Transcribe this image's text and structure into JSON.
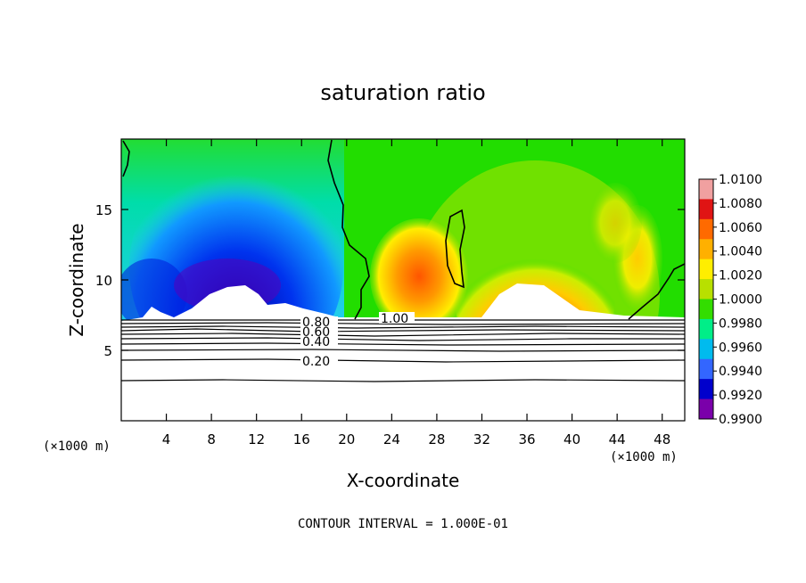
{
  "chart_data": {
    "type": "heatmap",
    "title": "saturation ratio",
    "xlabel": "X-coordinate",
    "ylabel": "Z-coordinate",
    "x_unit": "(×1000 m)",
    "x_unit_right": "(×1000 m)",
    "xlim": [
      0,
      50
    ],
    "ylim": [
      0,
      20
    ],
    "x_ticks": [
      4,
      8,
      12,
      16,
      20,
      24,
      28,
      32,
      36,
      40,
      44,
      48
    ],
    "y_ticks": [
      5,
      10,
      15
    ],
    "colorbar": {
      "labels": [
        "1.0100",
        "1.0080",
        "1.0060",
        "1.0040",
        "1.0020",
        "1.0000",
        "0.9980",
        "0.9960",
        "0.9940",
        "0.9920",
        "0.9900"
      ],
      "min": 0.99,
      "max": 1.01,
      "colors_top_to_bottom": [
        "#f0a0a0",
        "#e01414",
        "#ff6a00",
        "#ffb000",
        "#ffee00",
        "#b8e000",
        "#33dd00",
        "#00ee88",
        "#00bbee",
        "#3366ff",
        "#0000cc",
        "#7a00aa"
      ]
    },
    "contour_labels": [
      {
        "text": "0.80",
        "value": 0.8
      },
      {
        "text": "0.60",
        "value": 0.6
      },
      {
        "text": "0.40",
        "value": 0.4
      },
      {
        "text": "0.20",
        "value": 0.2
      },
      {
        "text": "1.00",
        "value": 1.0
      }
    ],
    "footer": "CONTOUR INTERVAL = 1.000E-01"
  }
}
